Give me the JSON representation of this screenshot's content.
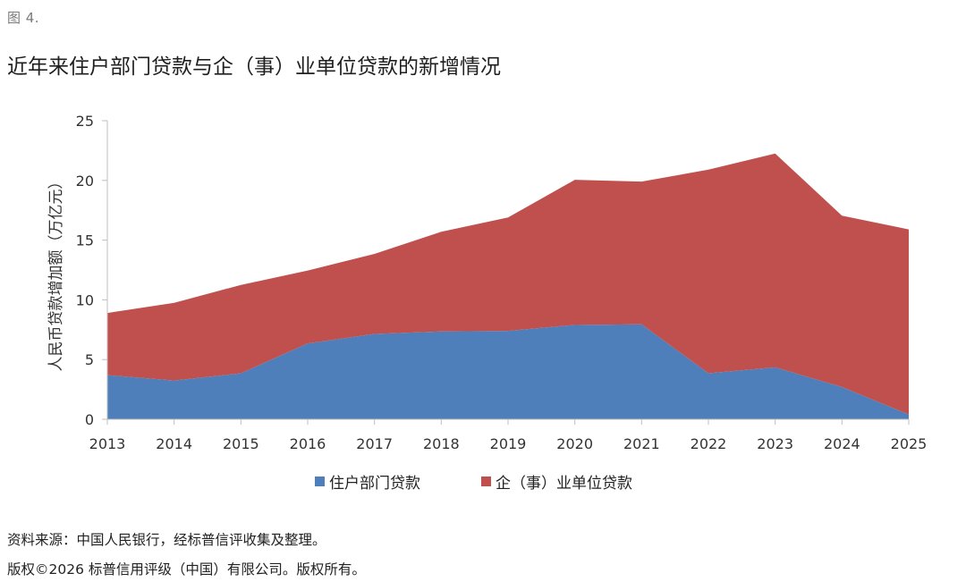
{
  "figure_label": "图 4.",
  "chart_data": {
    "type": "area",
    "stacked": true,
    "title": "近年来住户部门贷款与企（事）业单位贷款的新增情况",
    "xlabel": "",
    "ylabel": "人民币贷款增加额（万亿元）",
    "ylim": [
      0,
      25
    ],
    "yticks": [
      "0",
      "5",
      "10",
      "15",
      "20",
      "25"
    ],
    "grid": false,
    "legend_position": "bottom",
    "x": [
      "2013",
      "2014",
      "2015",
      "2016",
      "2017",
      "2018",
      "2019",
      "2020",
      "2021",
      "2022",
      "2023",
      "2024",
      "2025"
    ],
    "series": [
      {
        "name": "住户部门贷款",
        "color": "#4f7fba",
        "values": [
          3.7,
          3.25,
          3.85,
          6.35,
          7.15,
          7.35,
          7.4,
          7.9,
          7.95,
          3.85,
          4.35,
          2.7,
          0.4
        ]
      },
      {
        "name": "企（事）业单位贷款",
        "color": "#c0504d",
        "values": [
          5.2,
          6.5,
          7.4,
          6.1,
          6.7,
          8.35,
          9.5,
          12.15,
          11.95,
          17.05,
          17.9,
          14.35,
          15.5
        ]
      }
    ]
  },
  "footer": {
    "source": "资料来源：中国人民银行，经标普信评收集及整理。",
    "copyright": "版权©2026 标普信用评级（中国）有限公司。版权所有。"
  }
}
